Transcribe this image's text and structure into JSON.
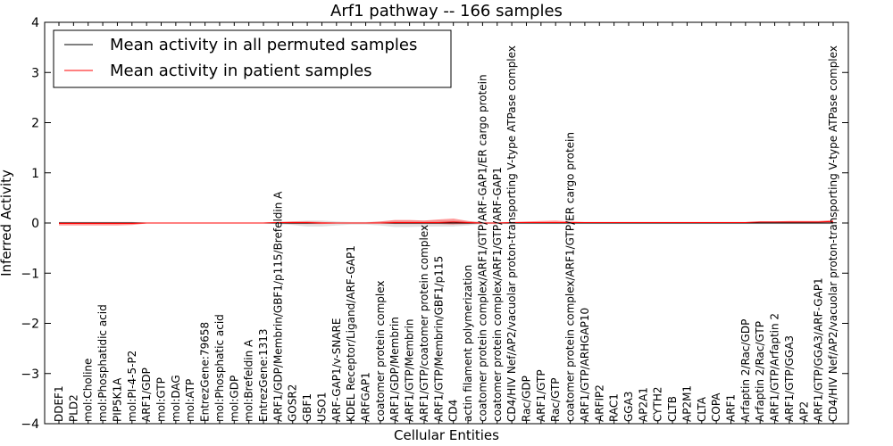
{
  "chart_data": {
    "type": "line",
    "title": "Arf1 pathway -- 166 samples",
    "xlabel": "Cellular Entities",
    "ylabel": "Inferred Activity",
    "ylim": [
      -4,
      4
    ],
    "yticks": [
      "−4",
      "−3",
      "−2",
      "−1",
      "0",
      "1",
      "2",
      "3",
      "4"
    ],
    "legend_position": "top-left",
    "categories": [
      "DDEF1",
      "PLD2",
      "mol:Choline",
      "mol:Phosphatidic acid",
      "PIP5K1A",
      "mol:PI-4-5-P2",
      "ARF1/GDP",
      "mol:GTP",
      "mol:DAG",
      "mol:ATP",
      "EntrezGene:79658",
      "mol:Phosphatic acid",
      "mol:GDP",
      "mol:Brefeldin A",
      "EntrezGene:1313",
      "ARF1/GDP/Membrin/GBF1/p115/Brefeldin A",
      "GOSR2",
      "GBF1",
      "USO1",
      "ARF-GAP1/v-SNARE",
      "KDEL Receptor/Ligand/ARF-GAP1",
      "ARFGAP1",
      "coatomer protein complex",
      "ARF1/GDP/Membrin",
      "ARF1/GTP/Membrin",
      "ARF1/GTP/coatomer protein complex",
      "ARF1/GTP/Membrin/GBF1/p115",
      "CD4",
      "actin filament polymerization",
      "coatomer protein complex/ARF1/GTP/ARF-GAP1/ER cargo protein",
      "coatomer protein complex/ARF1/GTP/ARF-GAP1",
      "CD4/HIV Nef/AP2/vacuolar proton-transporting V-type ATPase complex",
      "Rac/GDP",
      "ARF1/GTP",
      "Rac/GTP",
      "coatomer protein complex/ARF1/GTP/ER cargo protein",
      "ARF1/GTP/ARHGAP10",
      "ARFIP2",
      "RAC1",
      "GGA3",
      "AP2A1",
      "CYTH2",
      "CLTB",
      "AP2M1",
      "CLTA",
      "COPA",
      "ARF1",
      "Arfaptin 2/Rac/GDP",
      "Arfaptin 2/Rac/GTP",
      "ARF1/GTP/Arfaptin 2",
      "ARF1/GTP/GGA3",
      "AP2",
      "ARF1/GTP/GGA3/ARF-GAP1",
      "CD4/HIV Nef/AP2/vacuolar proton-transporting V-type ATPase complex"
    ],
    "series": [
      {
        "name": "Mean activity in all permuted samples",
        "color": "#000000",
        "values": [
          0,
          0,
          0,
          0,
          0,
          0,
          0,
          0,
          0,
          0,
          0,
          0,
          0,
          0,
          0,
          0,
          0,
          0,
          0,
          0,
          0,
          0,
          0,
          0,
          0,
          0,
          0,
          0,
          0,
          0,
          0,
          0,
          0,
          0,
          0,
          0,
          0,
          0,
          0,
          0,
          0,
          0,
          0,
          0,
          0,
          0,
          0,
          0,
          0,
          0,
          0,
          0,
          0,
          0
        ]
      },
      {
        "name": "Mean activity in patient samples",
        "color": "#ff0000",
        "values": [
          -0.01,
          -0.01,
          -0.01,
          -0.01,
          -0.01,
          -0.01,
          0,
          0,
          0,
          0,
          0,
          0,
          0,
          0,
          0,
          0.01,
          0.01,
          0.01,
          0,
          0,
          0,
          0,
          0,
          0.01,
          0.01,
          0.01,
          0.01,
          0.02,
          0.01,
          0,
          0,
          0.01,
          0.01,
          0.01,
          0.01,
          0.01,
          0.01,
          0.01,
          0.01,
          0.01,
          0.01,
          0.01,
          0.01,
          0.01,
          0.01,
          0.01,
          0.01,
          0.01,
          0.02,
          0.02,
          0.02,
          0.02,
          0.02,
          0.03
        ]
      }
    ],
    "patient_band": {
      "upper": [
        0.02,
        0.02,
        0.02,
        0.02,
        0.02,
        0.02,
        0.01,
        0.01,
        0.01,
        0.01,
        0.01,
        0.01,
        0.01,
        0.01,
        0.01,
        0.02,
        0.03,
        0.03,
        0.02,
        0.01,
        0.01,
        0.01,
        0.03,
        0.06,
        0.06,
        0.05,
        0.07,
        0.09,
        0.04,
        0.01,
        0.01,
        0.02,
        0.03,
        0.04,
        0.05,
        0.03,
        0.02,
        0.02,
        0.02,
        0.02,
        0.02,
        0.02,
        0.02,
        0.02,
        0.02,
        0.02,
        0.02,
        0.02,
        0.03,
        0.03,
        0.04,
        0.04,
        0.04,
        0.06
      ],
      "lower": [
        -0.05,
        -0.05,
        -0.05,
        -0.05,
        -0.05,
        -0.04,
        -0.01,
        -0.01,
        -0.01,
        -0.01,
        -0.01,
        -0.01,
        -0.01,
        -0.01,
        -0.01,
        -0.01,
        -0.02,
        -0.02,
        -0.02,
        -0.01,
        -0.01,
        -0.01,
        -0.01,
        -0.02,
        -0.02,
        -0.02,
        -0.02,
        -0.03,
        -0.02,
        -0.01,
        -0.01,
        -0.01,
        -0.01,
        -0.01,
        -0.01,
        -0.01,
        -0.01,
        -0.01,
        -0.01,
        -0.01,
        -0.01,
        -0.01,
        -0.01,
        -0.01,
        -0.01,
        -0.01,
        -0.01,
        -0.01,
        -0.01,
        -0.01,
        -0.01,
        -0.01,
        -0.01,
        -0.01
      ]
    },
    "permuted_band": {
      "upper": [
        0.01,
        0.01,
        0.01,
        0.01,
        0.01,
        0.01,
        0.01,
        0.01,
        0.01,
        0.01,
        0.01,
        0.01,
        0.01,
        0.01,
        0.01,
        0.02,
        0.03,
        0.05,
        0.05,
        0.03,
        0.02,
        0.02,
        0.03,
        0.05,
        0.05,
        0.05,
        0.05,
        0.05,
        0.04,
        0.02,
        0.02,
        0.02,
        0.02,
        0.02,
        0.02,
        0.02,
        0.02,
        0.02,
        0.02,
        0.02,
        0.02,
        0.02,
        0.02,
        0.02,
        0.02,
        0.02,
        0.02,
        0.02,
        0.02,
        0.02,
        0.02,
        0.02,
        0.02,
        0.02
      ],
      "lower": [
        -0.01,
        -0.01,
        -0.01,
        -0.01,
        -0.01,
        -0.01,
        -0.01,
        -0.01,
        -0.01,
        -0.01,
        -0.01,
        -0.01,
        -0.01,
        -0.01,
        -0.01,
        -0.02,
        -0.04,
        -0.07,
        -0.07,
        -0.05,
        -0.03,
        -0.03,
        -0.05,
        -0.08,
        -0.08,
        -0.07,
        -0.07,
        -0.07,
        -0.05,
        -0.02,
        -0.02,
        -0.02,
        -0.02,
        -0.02,
        -0.02,
        -0.02,
        -0.02,
        -0.02,
        -0.02,
        -0.02,
        -0.02,
        -0.02,
        -0.02,
        -0.02,
        -0.02,
        -0.02,
        -0.02,
        -0.02,
        -0.02,
        -0.02,
        -0.02,
        -0.02,
        -0.02,
        -0.02
      ]
    }
  }
}
